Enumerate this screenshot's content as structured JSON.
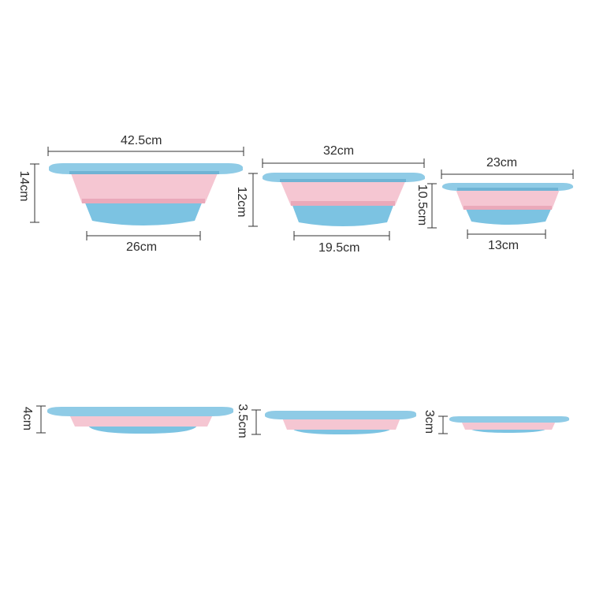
{
  "colors": {
    "rim": "#8fcbe6",
    "rim_dark": "#6fb3d4",
    "pink": "#f5c6d2",
    "pink_dark": "#eaa9ba",
    "base": "#7cc3e2",
    "base_dark": "#5aaed4",
    "line": "#333333"
  },
  "expanded": {
    "large": {
      "top_width": "42.5cm",
      "height": "14cm",
      "bottom_width": "26cm"
    },
    "medium": {
      "top_width": "32cm",
      "height": "12cm",
      "bottom_width": "19.5cm"
    },
    "small": {
      "top_width": "23cm",
      "height": "10.5cm",
      "bottom_width": "13cm"
    }
  },
  "collapsed": {
    "large": {
      "height": "4cm"
    },
    "medium": {
      "height": "3.5cm"
    },
    "small": {
      "height": "3cm"
    }
  }
}
